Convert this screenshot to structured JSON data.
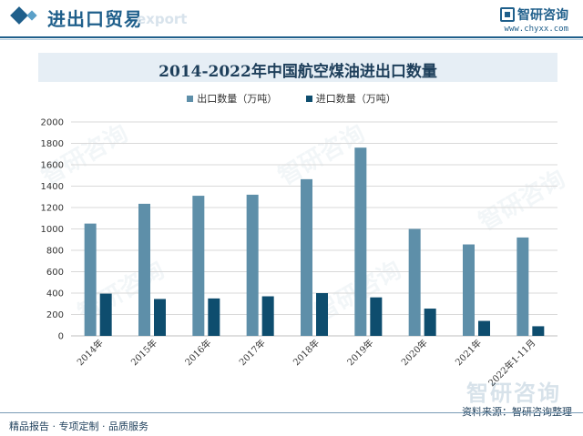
{
  "header": {
    "title": "进出口贸易",
    "ghost_text": "export",
    "logo_name": "智研咨询",
    "logo_url": "www.chyxx.com"
  },
  "watermark_text": "智研咨询",
  "colors": {
    "export_series": "#5e8fa9",
    "import_series": "#0e4d6e",
    "brand": "#1f5f8b"
  },
  "chart_data": {
    "type": "bar",
    "title": "2014-2022年中国航空煤油进出口数量",
    "categories": [
      "2014年",
      "2015年",
      "2016年",
      "2017年",
      "2018年",
      "2019年",
      "2020年",
      "2021年",
      "2022年1-11月"
    ],
    "series": [
      {
        "name": "出口数量（万吨）",
        "values": [
          1050,
          1235,
          1310,
          1320,
          1465,
          1760,
          1000,
          855,
          920
        ]
      },
      {
        "name": "进口数量（万吨）",
        "values": [
          395,
          345,
          350,
          370,
          400,
          360,
          255,
          140,
          90
        ]
      }
    ],
    "ylim": [
      0,
      2000
    ],
    "yticks": [
      0,
      200,
      400,
      600,
      800,
      1000,
      1200,
      1400,
      1600,
      1800,
      2000
    ],
    "grid": true,
    "legend_position": "top-center"
  },
  "footer": {
    "left": "精品报告 · 专项定制 · 品质服务",
    "source": "资料来源：智研咨询整理"
  }
}
